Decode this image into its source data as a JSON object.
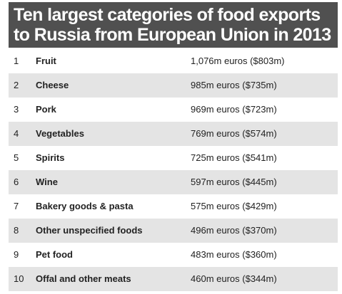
{
  "chart_data": {
    "type": "table",
    "title": "Ten largest categories of food exports to Russia from European Union in 2013",
    "rows": [
      {
        "rank": "1",
        "category": "Fruit",
        "value": "1,076m euros ($803m)"
      },
      {
        "rank": "2",
        "category": "Cheese",
        "value": "985m euros ($735m)"
      },
      {
        "rank": "3",
        "category": "Pork",
        "value": "969m euros ($723m)"
      },
      {
        "rank": "4",
        "category": "Vegetables",
        "value": "769m euros ($574m)"
      },
      {
        "rank": "5",
        "category": "Spirits",
        "value": "725m euros ($541m)"
      },
      {
        "rank": "6",
        "category": "Wine",
        "value": "597m euros ($445m)"
      },
      {
        "rank": "7",
        "category": "Bakery goods & pasta",
        "value": "575m euros ($429m)"
      },
      {
        "rank": "8",
        "category": "Other unspecified foods",
        "value": "496m euros ($370m)"
      },
      {
        "rank": "9",
        "category": "Pet food",
        "value": "483m euros ($360m)"
      },
      {
        "rank": "10",
        "category": "Offal and other meats",
        "value": "460m euros ($344m)"
      }
    ],
    "colors": {
      "title_background": "#505050",
      "title_text": "#ffffff",
      "alternate_row": "#e4e4e4"
    }
  }
}
